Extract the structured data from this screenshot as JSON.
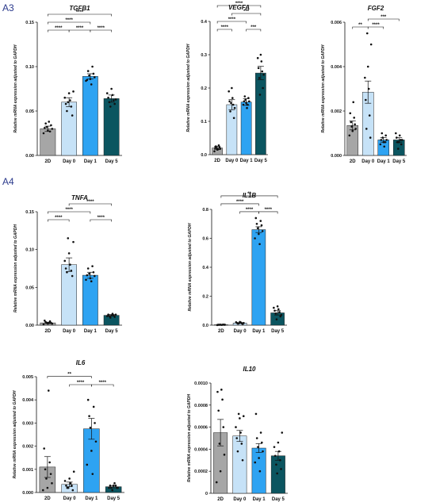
{
  "panel_labels": [
    "A3",
    "A4"
  ],
  "chart_data": [
    {
      "type": "bar",
      "title": "TGFB1",
      "ylabel": "Relative mRNA expression adjusted to GAPDH",
      "categories": [
        "2D",
        "Day 0",
        "Day 1",
        "Day 5"
      ],
      "values": [
        0.03,
        0.06,
        0.089,
        0.064
      ],
      "errors": [
        0.003,
        0.005,
        0.003,
        0.004
      ],
      "ylim": [
        0,
        0.15
      ],
      "yticks": [
        "0.00",
        "0.05",
        "0.10",
        "0.15"
      ],
      "points": [
        [
          0.025,
          0.028,
          0.03,
          0.032,
          0.034,
          0.036,
          0.027,
          0.031,
          0.038
        ],
        [
          0.045,
          0.05,
          0.055,
          0.058,
          0.062,
          0.065,
          0.07,
          0.072,
          0.06
        ],
        [
          0.08,
          0.084,
          0.086,
          0.088,
          0.09,
          0.092,
          0.095,
          0.1,
          0.085
        ],
        [
          0.055,
          0.058,
          0.06,
          0.062,
          0.065,
          0.068,
          0.07,
          0.075,
          0.063
        ]
      ],
      "brackets": [
        {
          "from": 0,
          "to": 1,
          "label": "****"
        },
        {
          "from": 1,
          "to": 2,
          "label": "****"
        },
        {
          "from": 2,
          "to": 3,
          "label": "****"
        },
        {
          "from": 0,
          "to": 2,
          "label": "****"
        },
        {
          "from": 0,
          "to": 3,
          "label": "****"
        }
      ]
    },
    {
      "type": "bar",
      "title": "VEGFA",
      "ylabel": "Relative mRNA expression adjusted to GAPDH",
      "categories": [
        "2D",
        "Day 0",
        "Day 1",
        "Day 5"
      ],
      "values": [
        0.02,
        0.15,
        0.158,
        0.245
      ],
      "errors": [
        0.005,
        0.015,
        0.01,
        0.02
      ],
      "ylim": [
        0,
        0.4
      ],
      "yticks": [
        "0.0",
        "0.1",
        "0.2",
        "0.3",
        "0.4"
      ],
      "points": [
        [
          0.01,
          0.015,
          0.018,
          0.02,
          0.022,
          0.025,
          0.028,
          0.02,
          0.016
        ],
        [
          0.11,
          0.13,
          0.15,
          0.16,
          0.17,
          0.19,
          0.2,
          0.14,
          0.155
        ],
        [
          0.14,
          0.15,
          0.155,
          0.16,
          0.165,
          0.17,
          0.175,
          0.15,
          0.16
        ],
        [
          0.18,
          0.2,
          0.23,
          0.25,
          0.26,
          0.28,
          0.29,
          0.3,
          0.24
        ]
      ],
      "brackets": [
        {
          "from": 0,
          "to": 1,
          "label": "****"
        },
        {
          "from": 2,
          "to": 3,
          "label": "***"
        },
        {
          "from": 0,
          "to": 2,
          "label": "****"
        },
        {
          "from": 1,
          "to": 3,
          "label": "***"
        },
        {
          "from": 0,
          "to": 3,
          "label": "****"
        }
      ]
    },
    {
      "type": "bar",
      "title": "FGF2",
      "ylabel": "Relative mRNA expression adjusted to GAPDH",
      "categories": [
        "2D",
        "Day 0",
        "Day 1",
        "Day 5"
      ],
      "values": [
        0.00135,
        0.00285,
        0.0007,
        0.0007
      ],
      "errors": [
        0.0002,
        0.0005,
        0.0001,
        0.0001
      ],
      "ylim": [
        0,
        0.006
      ],
      "yticks": [
        "0.000",
        "0.002",
        "0.004",
        "0.006"
      ],
      "points": [
        [
          0.0009,
          0.0011,
          0.0012,
          0.0013,
          0.0014,
          0.0015,
          0.0017,
          0.0019,
          0.0024
        ],
        [
          0.0008,
          0.0012,
          0.0018,
          0.0025,
          0.003,
          0.0035,
          0.004,
          0.005,
          0.0055
        ],
        [
          0.0004,
          0.0005,
          0.0006,
          0.0007,
          0.0008,
          0.0009,
          0.001,
          0.0006,
          0.0007
        ],
        [
          0.0003,
          0.0005,
          0.0006,
          0.0007,
          0.0008,
          0.0009,
          0.001,
          0.0006,
          0.0007
        ]
      ],
      "brackets": [
        {
          "from": 0,
          "to": 1,
          "label": "**"
        },
        {
          "from": 1,
          "to": 2,
          "label": "****"
        },
        {
          "from": 1,
          "to": 3,
          "label": "***"
        }
      ]
    },
    {
      "type": "bar",
      "title": "TNFA",
      "ylabel": "Relative mRNA expression adjusted to GAPDH",
      "categories": [
        "2D",
        "Day 0",
        "Day 1",
        "Day 5"
      ],
      "values": [
        0.003,
        0.08,
        0.066,
        0.013
      ],
      "errors": [
        0.001,
        0.009,
        0.004,
        0.001
      ],
      "ylim": [
        0,
        0.15
      ],
      "yticks": [
        "0.00",
        "0.05",
        "0.10",
        "0.15"
      ],
      "points": [
        [
          0.001,
          0.002,
          0.002,
          0.003,
          0.003,
          0.004,
          0.005,
          0.006,
          0.003
        ],
        [
          0.065,
          0.07,
          0.072,
          0.075,
          0.08,
          0.085,
          0.095,
          0.11,
          0.115
        ],
        [
          0.058,
          0.06,
          0.062,
          0.065,
          0.068,
          0.07,
          0.075,
          0.078,
          0.066
        ],
        [
          0.01,
          0.011,
          0.012,
          0.013,
          0.014,
          0.015,
          0.012,
          0.013,
          0.014
        ]
      ],
      "brackets": [
        {
          "from": 0,
          "to": 1,
          "label": "****"
        },
        {
          "from": 2,
          "to": 3,
          "label": "****"
        },
        {
          "from": 0,
          "to": 2,
          "label": "****"
        },
        {
          "from": 1,
          "to": 3,
          "label": "****"
        }
      ]
    },
    {
      "type": "bar",
      "title": "IL1B",
      "ylabel": "Relative mRNA expression adjusted to GAPDH",
      "categories": [
        "2D",
        "Day 0",
        "Day 1",
        "Day 5"
      ],
      "values": [
        0.003,
        0.015,
        0.66,
        0.085
      ],
      "errors": [
        0.001,
        0.003,
        0.02,
        0.015
      ],
      "ylim": [
        0,
        0.8
      ],
      "yticks": [
        "0.0",
        "0.2",
        "0.4",
        "0.6",
        "0.8"
      ],
      "points": [
        [
          0.001,
          0.002,
          0.003,
          0.004,
          0.003,
          0.002,
          0.004,
          0.003,
          0.002
        ],
        [
          0.008,
          0.01,
          0.012,
          0.015,
          0.018,
          0.02,
          0.022,
          0.015,
          0.013
        ],
        [
          0.56,
          0.6,
          0.63,
          0.65,
          0.67,
          0.69,
          0.7,
          0.72,
          0.74
        ],
        [
          0.04,
          0.06,
          0.08,
          0.09,
          0.1,
          0.11,
          0.12,
          0.13,
          0.07
        ]
      ],
      "brackets": [
        {
          "from": 1,
          "to": 2,
          "label": "****"
        },
        {
          "from": 2,
          "to": 3,
          "label": "****"
        },
        {
          "from": 0,
          "to": 2,
          "label": "****"
        },
        {
          "from": 0,
          "to": 3,
          "label": "**"
        }
      ]
    },
    {
      "type": "bar",
      "title": "IL6",
      "ylabel": "Relative mRNA expression adjusted to GAPDH",
      "categories": [
        "2D",
        "Day 0",
        "Day 1",
        "Day 5"
      ],
      "values": [
        0.0011,
        0.00035,
        0.00275,
        0.00025
      ],
      "errors": [
        0.00045,
        0.0001,
        0.00045,
        5e-05
      ],
      "ylim": [
        0,
        0.005
      ],
      "yticks": [
        "0.000",
        "0.001",
        "0.002",
        "0.003",
        "0.004",
        "0.005"
      ],
      "points": [
        [
          0.0001,
          0.0002,
          0.0004,
          0.0006,
          0.0008,
          0.001,
          0.0013,
          0.0019,
          0.0044
        ],
        [
          0.0001,
          0.0002,
          0.0003,
          0.0003,
          0.0004,
          0.0005,
          0.0006,
          0.0009,
          0.0002
        ],
        [
          0.0008,
          0.0012,
          0.0018,
          0.0022,
          0.0028,
          0.003,
          0.0033,
          0.0037,
          0.004
        ],
        [
          0.0001,
          0.0002,
          0.0002,
          0.0003,
          0.0003,
          0.0004,
          0.0002,
          0.0003,
          0.0002
        ]
      ],
      "brackets": [
        {
          "from": 1,
          "to": 2,
          "label": "****"
        },
        {
          "from": 2,
          "to": 3,
          "label": "****"
        },
        {
          "from": 0,
          "to": 2,
          "label": "**"
        }
      ]
    },
    {
      "type": "bar",
      "title": "IL10",
      "ylabel": "Relative mRNA expression adjusted to GAPDH",
      "categories": [
        "2D",
        "Day 0",
        "Day 1",
        "Day 5"
      ],
      "values": [
        0.00055,
        0.00052,
        0.00041,
        0.00034
      ],
      "errors": [
        0.00012,
        5e-05,
        4e-05,
        4e-05
      ],
      "ylim": [
        0,
        0.001
      ],
      "yticks": [
        "0",
        "0.0002",
        "0.0004",
        "0.0006",
        "0.0008",
        "0.0010"
      ],
      "points": [
        [
          0.0001,
          0.0002,
          0.00035,
          0.00045,
          0.0006,
          0.00075,
          0.00085,
          0.00092,
          0.00094
        ],
        [
          0.0003,
          0.00038,
          0.00045,
          0.0005,
          0.00055,
          0.0006,
          0.00068,
          0.0007,
          0.00072
        ],
        [
          0.0002,
          0.00028,
          0.00032,
          0.00038,
          0.00042,
          0.00046,
          0.0005,
          0.00055,
          0.00072
        ],
        [
          0.00018,
          0.00022,
          0.00026,
          0.0003,
          0.00034,
          0.00038,
          0.00042,
          0.00046,
          0.00055
        ]
      ],
      "brackets": []
    }
  ]
}
